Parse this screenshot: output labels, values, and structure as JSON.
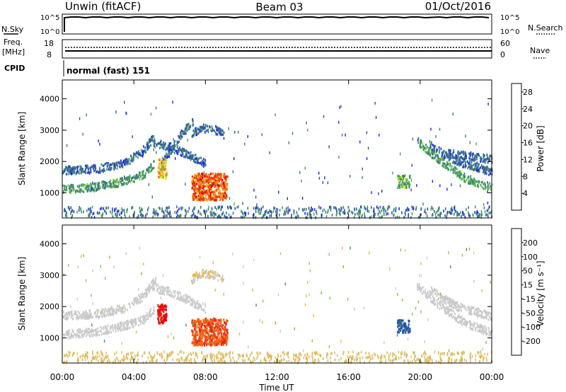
{
  "header": {
    "station": "Unwin (fitACF)",
    "beam": "Beam 03",
    "date": "01/Oct/2016"
  },
  "strips": {
    "nsky": {
      "label": "N.Sky",
      "ticks": [
        "10^5",
        "10^0"
      ]
    },
    "nsearch": {
      "label": "N.Search",
      "ticks": [
        "10^5",
        "10^0"
      ]
    },
    "freq": {
      "label": "Freq.",
      "unit": "[MHz]",
      "ticks": [
        "18",
        "8"
      ]
    },
    "nave": {
      "label": "Nave",
      "ticks": [
        "60",
        "0"
      ]
    },
    "cpid": {
      "label": "CPID",
      "value": "normal (fast) 151"
    }
  },
  "colors": {
    "power": [
      "#1e1eff",
      "#2850b4",
      "#3c7878",
      "#4a9a6a",
      "#62c83c",
      "#e6e628",
      "#f5b41e",
      "#f07814",
      "#e83c0a",
      "#e60000"
    ],
    "velocity": [
      "#1a1acd",
      "#2850b4",
      "#2e6e78",
      "#4a8c50",
      "#7acc3c",
      "#c8c8c8",
      "#cccccc",
      "#e8b43c",
      "#f08c1e",
      "#f06414",
      "#e62814",
      "#e60000"
    ],
    "ground": "#c8c8c8"
  },
  "chart_data": [
    {
      "type": "heatmap",
      "name": "power",
      "xlabel": "",
      "ylabel": "Slant Range [km]",
      "x_ticks": [
        "00:00",
        "04:00",
        "08:00",
        "12:00",
        "16:00",
        "20:00",
        "00:00"
      ],
      "y_ticks": [
        "1000",
        "2000",
        "3000",
        "4000"
      ],
      "ylim": [
        200,
        4600
      ],
      "colorbar": {
        "label": "Power [dB]",
        "ticks": [
          "4",
          "8",
          "12",
          "16",
          "20",
          "24",
          "28"
        ],
        "range": [
          0,
          30
        ]
      },
      "features": [
        {
          "feature": "band",
          "t": [
            0.0,
            1.5,
            3.0,
            4.5,
            5.1
          ],
          "r": [
            1150,
            1200,
            1350,
            1600,
            1950
          ],
          "value": 10
        },
        {
          "feature": "band",
          "t": [
            0.0,
            2.0,
            3.5,
            4.5,
            5.2
          ],
          "r": [
            1750,
            1800,
            2000,
            2350,
            2900
          ],
          "value": 6
        },
        {
          "feature": "band",
          "t": [
            5.0,
            6.0,
            7.0,
            7.7,
            8.0
          ],
          "r": [
            2650,
            2500,
            2250,
            2050,
            1950
          ],
          "value": 6
        },
        {
          "feature": "band",
          "t": [
            7.2,
            7.8,
            8.5,
            9.0
          ],
          "r": [
            2900,
            3100,
            3050,
            2900
          ],
          "value": 6
        },
        {
          "feature": "band",
          "t": [
            5.5,
            6.0,
            6.7,
            7.3
          ],
          "r": [
            2000,
            2350,
            2950,
            3300
          ],
          "value": 6
        },
        {
          "feature": "band",
          "t": [
            19.8,
            21.0,
            22.5,
            24.0
          ],
          "r": [
            2700,
            2100,
            1500,
            1200
          ],
          "value": 10
        },
        {
          "feature": "band",
          "t": [
            20.5,
            22.0,
            24.0
          ],
          "r": [
            2550,
            2050,
            1700
          ],
          "value": 6
        },
        {
          "feature": "band",
          "t": [
            21.5,
            24.0
          ],
          "r": [
            2300,
            2100
          ],
          "value": 6
        },
        {
          "feature": "patch",
          "t": [
            7.2,
            9.2
          ],
          "r": [
            800,
            1650
          ],
          "value": 24
        },
        {
          "feature": "patch",
          "t": [
            18.7,
            19.4
          ],
          "r": [
            1200,
            1600
          ],
          "value": 12
        },
        {
          "feature": "patch",
          "t": [
            5.3,
            5.8
          ],
          "r": [
            1500,
            2100
          ],
          "value": 18
        }
      ]
    },
    {
      "type": "heatmap",
      "name": "velocity",
      "xlabel": "Time UT",
      "ylabel": "Slant Range [km]",
      "x_ticks": [
        "00:00",
        "04:00",
        "08:00",
        "12:00",
        "16:00",
        "20:00",
        "00:00"
      ],
      "y_ticks": [
        "1000",
        "2000",
        "3000",
        "4000"
      ],
      "ylim": [
        200,
        4600
      ],
      "colorbar": {
        "label": "Velocity [m s⁻¹]",
        "ticks": [
          "200",
          "100",
          "50",
          "15",
          "-15",
          "-50",
          "-100",
          "-200"
        ],
        "range": [
          -250,
          250
        ]
      },
      "features": [
        {
          "feature": "band",
          "t": [
            0.0,
            1.5,
            3.0,
            4.5,
            5.1
          ],
          "r": [
            1150,
            1200,
            1350,
            1600,
            1950
          ],
          "value": 0
        },
        {
          "feature": "band",
          "t": [
            0.0,
            2.0,
            3.5,
            4.5,
            5.2
          ],
          "r": [
            1750,
            1800,
            2000,
            2350,
            2900
          ],
          "value": 0
        },
        {
          "feature": "band",
          "t": [
            5.0,
            6.0,
            7.0,
            7.7,
            8.0
          ],
          "r": [
            2650,
            2500,
            2250,
            2050,
            1950
          ],
          "value": -30
        },
        {
          "feature": "band",
          "t": [
            7.2,
            7.8,
            8.5,
            9.0
          ],
          "r": [
            2900,
            3100,
            3050,
            2900
          ],
          "value": -40
        },
        {
          "feature": "band",
          "t": [
            19.8,
            21.0,
            22.5,
            24.0
          ],
          "r": [
            2700,
            2100,
            1500,
            1200
          ],
          "value": 0
        },
        {
          "feature": "band",
          "t": [
            20.5,
            22.0,
            24.0
          ],
          "r": [
            2550,
            2050,
            1700
          ],
          "value": 0
        },
        {
          "feature": "patch",
          "t": [
            7.2,
            9.2
          ],
          "r": [
            800,
            1650
          ],
          "value": -160
        },
        {
          "feature": "patch",
          "t": [
            18.7,
            19.4
          ],
          "r": [
            1200,
            1600
          ],
          "value": 180
        },
        {
          "feature": "patch",
          "t": [
            5.3,
            5.8
          ],
          "r": [
            1500,
            2100
          ],
          "value": -220
        }
      ]
    }
  ]
}
